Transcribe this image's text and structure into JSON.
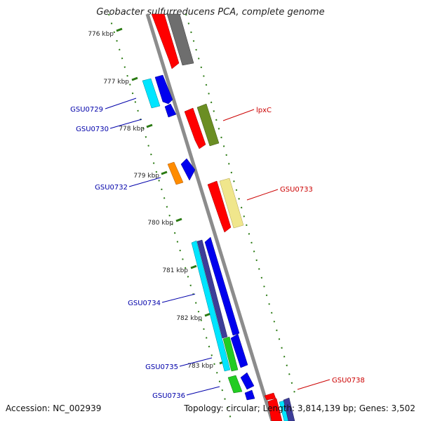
{
  "map": {
    "title": "Geobacter sulfurreducens PCA, complete genome",
    "accession": "Accession: NC_002939",
    "summary": "Topology: circular; Length: 3,814,139 bp; Genes: 3,502"
  },
  "ticks": [
    {
      "id": "t776",
      "label": "776 kbp"
    },
    {
      "id": "t777",
      "label": "777 kbp"
    },
    {
      "id": "t778",
      "label": "778 kbp"
    },
    {
      "id": "t779",
      "label": "779 kbp"
    },
    {
      "id": "t780",
      "label": "780 kbp"
    },
    {
      "id": "t781",
      "label": "781 kbp"
    },
    {
      "id": "t782",
      "label": "782 kbp"
    },
    {
      "id": "t783",
      "label": "783 kbp"
    }
  ],
  "gene_labels": [
    {
      "id": "gsu0729",
      "text": "GSU0729",
      "color": "#0000aa"
    },
    {
      "id": "gsu0730",
      "text": "GSU0730",
      "color": "#0000aa"
    },
    {
      "id": "gsu0732",
      "text": "GSU0732",
      "color": "#0000aa"
    },
    {
      "id": "gsu0734",
      "text": "GSU0734",
      "color": "#0000aa"
    },
    {
      "id": "gsu0735",
      "text": "GSU0735",
      "color": "#0000aa"
    },
    {
      "id": "gsu0736",
      "text": "GSU0736",
      "color": "#0000aa"
    },
    {
      "id": "lpxc",
      "text": "lpxC",
      "color": "#cc0000"
    },
    {
      "id": "gsu0733",
      "text": "GSU0733",
      "color": "#cc0000"
    },
    {
      "id": "gsu0738",
      "text": "GSU0738",
      "color": "#cc0000"
    }
  ],
  "colors": {
    "backbone": "#8c8c8c",
    "tick": "#2a7a12",
    "red": "#ff0000",
    "gray": "#6e6e6e",
    "olive": "#6b8e23",
    "khaki": "#f0e68c",
    "cyan": "#00e5ff",
    "blue": "#0000ee",
    "navy": "#3d3d99",
    "orange": "#ff8c00",
    "green": "#22cc22"
  }
}
